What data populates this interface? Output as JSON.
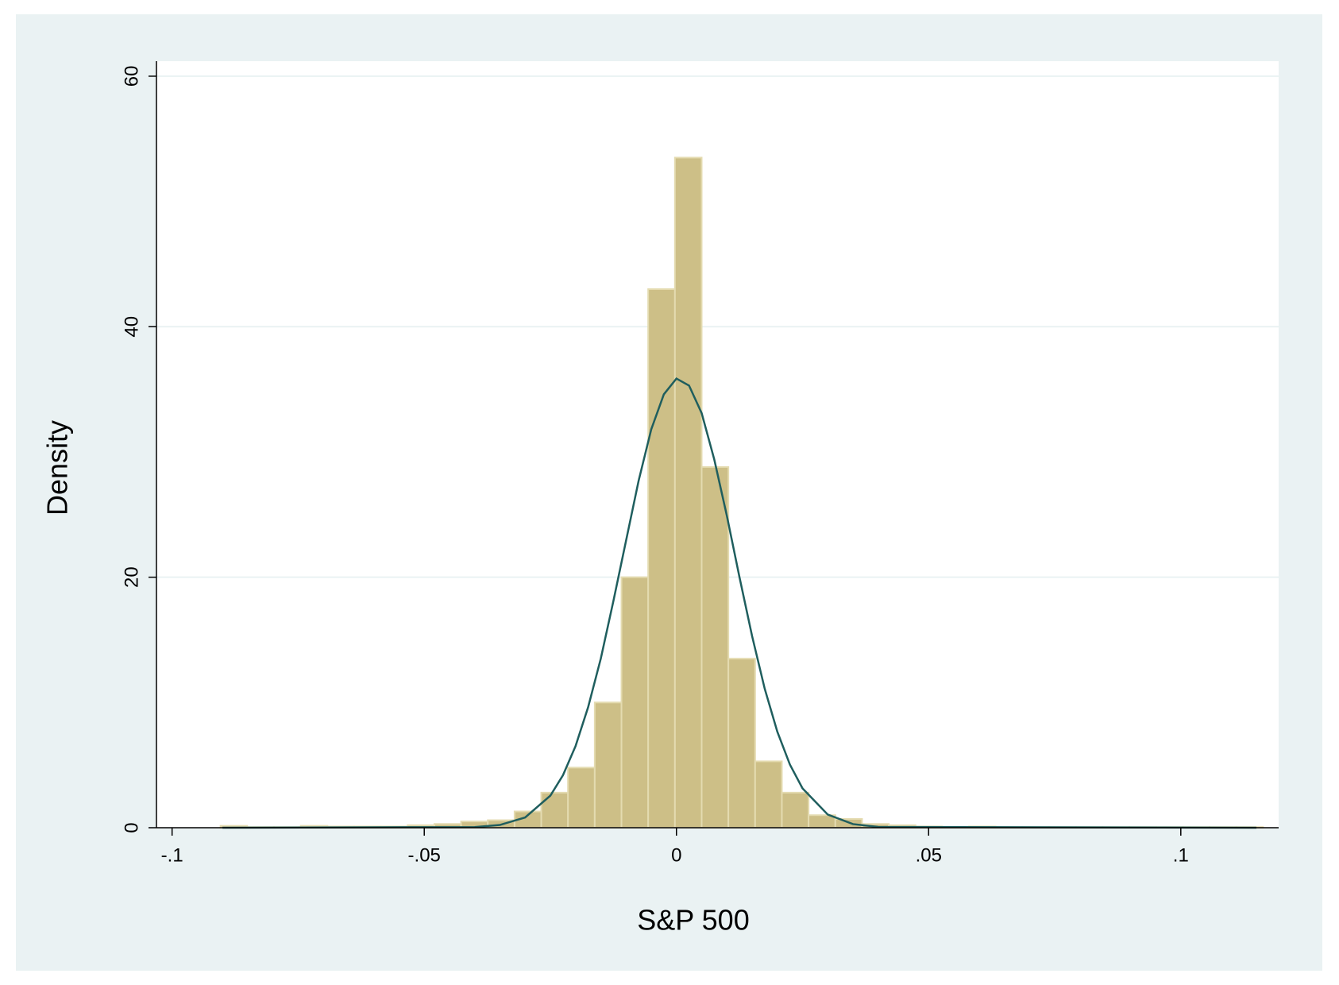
{
  "chart_data": {
    "type": "histogram",
    "x_label": "S&P 500",
    "y_label": "Density",
    "bins": [
      -0.0904,
      -0.0851,
      -0.0798,
      -0.0745,
      -0.0692,
      -0.0639,
      -0.0586,
      -0.0533,
      -0.048,
      -0.0427,
      -0.0374,
      -0.0321,
      -0.0268,
      -0.0215,
      -0.0162,
      -0.0109,
      -0.0056,
      -0.0003,
      0.005,
      0.0103,
      0.0156,
      0.0209,
      0.0262,
      0.0315,
      0.0368,
      0.0421,
      0.0474,
      0.0527,
      0.058,
      0.0633,
      0.0686,
      0.0739,
      0.0792,
      0.0845,
      0.0898,
      0.0951,
      0.1004,
      0.1057,
      0.111,
      0.1163
    ],
    "values": [
      0.15,
      0.05,
      0.05,
      0.15,
      0.1,
      0.1,
      0.1,
      0.2,
      0.3,
      0.5,
      0.6,
      1.3,
      2.8,
      4.8,
      10,
      20,
      43,
      53.5,
      28.8,
      13.5,
      5.3,
      2.8,
      1.0,
      0.7,
      0.3,
      0.2,
      0.1,
      0.05,
      0.1,
      0.05,
      0.05,
      0.05,
      0.05,
      0.05,
      0.05,
      0.05,
      0.05,
      0.05,
      0.05
    ],
    "color": "#cdbf87",
    "edge_color": "#e4dbb0",
    "overlay": {
      "color": "#1f5e5e",
      "x": [
        -0.09,
        -0.04,
        -0.035,
        -0.03,
        -0.025,
        -0.0225,
        -0.02,
        -0.0175,
        -0.015,
        -0.0125,
        -0.01,
        -0.0075,
        -0.005,
        -0.0025,
        0,
        0.0025,
        0.005,
        0.0075,
        0.01,
        0.0125,
        0.015,
        0.0175,
        0.02,
        0.0225,
        0.025,
        0.03,
        0.035,
        0.04,
        0.115
      ],
      "values": [
        0,
        0.05,
        0.22,
        0.82,
        2.56,
        4.19,
        6.52,
        9.64,
        13.5,
        18.1,
        22.9,
        27.7,
        31.8,
        34.6,
        35.86,
        35.3,
        33.1,
        29.4,
        24.9,
        20.0,
        15.3,
        11.1,
        7.67,
        5.04,
        3.14,
        1.05,
        0.29,
        0.06,
        0
      ]
    },
    "xlim": [
      -0.1031,
      0.1194
    ],
    "ylim": [
      0,
      61.2
    ],
    "xticks": [
      {
        "value": -0.1,
        "label": "-.1"
      },
      {
        "value": -0.05,
        "label": "-.05"
      },
      0,
      {
        "value": 0.05,
        "label": ".05"
      },
      {
        "value": 0.1,
        "label": ".1"
      }
    ],
    "yticks": [
      0,
      20,
      40,
      60
    ],
    "grid": true
  }
}
